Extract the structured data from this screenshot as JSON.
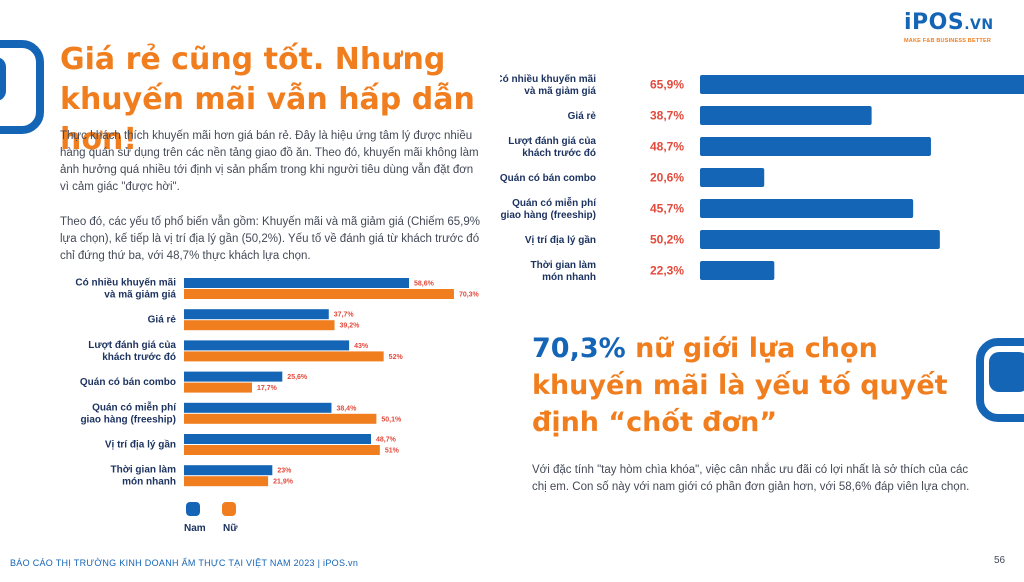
{
  "logo": {
    "brand": "iPOS",
    "suffix": ".VN",
    "tagline": "MAKE F&B BUSINESS BETTER"
  },
  "title": "Giá rẻ cũng tốt. Nhưng khuyến mãi vẫn hấp dẫn hơn!",
  "paragraph1": "Thực khách thích khuyến mãi hơn giá bán rẻ. Đây là hiệu ứng tâm lý được nhiều hàng quán sử dụng trên các nền tảng giao đồ ăn. Theo đó, khuyến mãi không làm ảnh hưởng quá nhiều tới định vị sản phẩm trong khi người tiêu dùng vẫn đặt đơn vì cảm giác \"được hời\".",
  "paragraph2": "Theo đó, các yếu tố phổ biến vẫn gồm: Khuyến mãi và mã giảm giá (Chiếm 65,9% lựa chọn), kế tiếp là vị trí địa lý gần (50,2%). Yếu tố về đánh giá từ khách trước đó chỉ đứng thứ ba, với 48,7% thực khách lựa chọn.",
  "headline": {
    "highlight": "70,3%",
    "rest": " nữ giới lựa chọn khuyến mãi là yếu tố quyết định “chốt đơn”"
  },
  "paragraph3": "Với đặc tính \"tay hòm chìa khóa\", việc cân nhắc ưu đãi có lợi nhất là sở thích của các chị em. Con số này với nam giới có phần đơn giản hơn, với 58,6% đáp viên lựa chọn.",
  "footer": "BÁO CÁO THỊ TRƯỜNG KINH DOANH ẨM THỰC TẠI VIỆT NAM 2023 | iPOS.vn",
  "page_number": "56",
  "colors": {
    "blue": "#1565b7",
    "orange": "#f07e1e",
    "navy": "#1d3360",
    "red_value": "#e34a3c",
    "text": "#444a57"
  },
  "chart_data": [
    {
      "type": "bar",
      "orientation": "horizontal",
      "categories": [
        [
          "Có nhiều khuyến mãi",
          "và mã giảm giá"
        ],
        [
          "Giá rẻ"
        ],
        [
          "Lượt đánh giá của",
          "khách trước đó"
        ],
        [
          "Quán có bán combo"
        ],
        [
          "Quán có miễn phí",
          "giao hàng (freeship)"
        ],
        [
          "Vị trí địa lý gần"
        ],
        [
          "Thời gian làm",
          "món nhanh"
        ]
      ],
      "series": [
        {
          "name": "Nam",
          "color": "#1565b7",
          "values": [
            58.6,
            37.7,
            43,
            25.6,
            38.4,
            48.7,
            23
          ],
          "labels": [
            "58,6%",
            "37,7%",
            "43%",
            "25,6%",
            "38,4%",
            "48,7%",
            "23%"
          ]
        },
        {
          "name": "Nữ",
          "color": "#f07e1e",
          "values": [
            70.3,
            39.2,
            52,
            17.7,
            50.1,
            51,
            21.9
          ],
          "labels": [
            "70,3%",
            "39,2%",
            "52%",
            "17,7%",
            "50,1%",
            "51%",
            "21,9%"
          ]
        }
      ],
      "xlim": [
        0,
        75
      ],
      "legend": "bottom-left",
      "grid": false
    },
    {
      "type": "bar",
      "orientation": "horizontal",
      "categories": [
        [
          "Có nhiều khuyến mãi",
          "và mã giảm giá"
        ],
        [
          "Giá rẻ"
        ],
        [
          "Lượt đánh giá của",
          "khách trước đó"
        ],
        [
          "Quán có bán combo"
        ],
        [
          "Quán có miễn phí",
          "giao hàng (freeship)"
        ],
        [
          "Vị trí địa lý gần"
        ],
        [
          "Thời gian làm",
          "món nhanh"
        ]
      ],
      "values": [
        65.9,
        38.7,
        48.7,
        20.6,
        45.7,
        50.2,
        22.3
      ],
      "labels": [
        "65,9%",
        "38,7%",
        "48,7%",
        "20,6%",
        "45,7%",
        "50,2%",
        "22,3%"
      ],
      "color": "#1565b7",
      "xlim": [
        0,
        75
      ],
      "grid": false
    }
  ]
}
